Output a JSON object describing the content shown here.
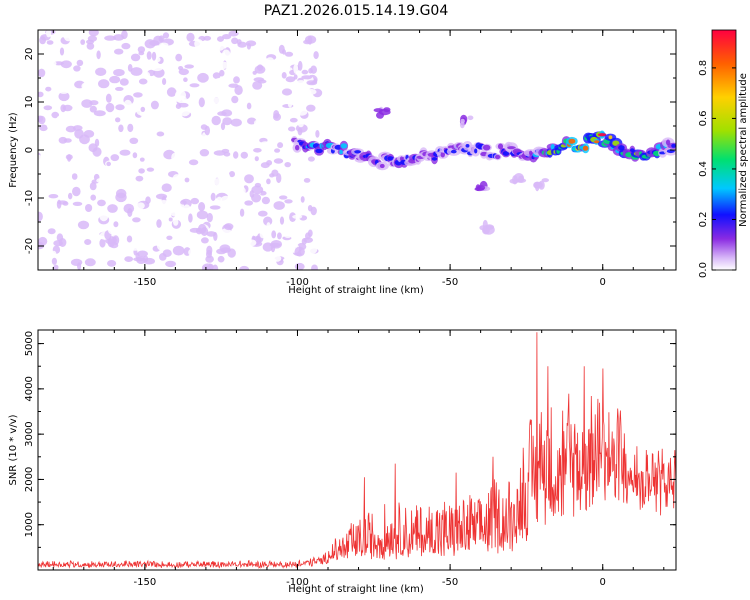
{
  "title": "PAZ1.2026.015.14.19.G04",
  "chart_data": [
    {
      "type": "heatmap",
      "name": "spectrogram",
      "xlabel": "Height of straight line (km)",
      "ylabel": "Frequency (Hz)",
      "xlim": [
        -185,
        24
      ],
      "ylim": [
        -25,
        25
      ],
      "xticks": [
        -150,
        -100,
        -50,
        0
      ],
      "yticks": [
        -20,
        -10,
        0,
        10,
        20
      ],
      "colorbar": {
        "label": "Normalized spectral amplitude",
        "range": [
          0.0,
          0.95
        ],
        "ticks": [
          0.0,
          0.2,
          0.4,
          0.6,
          0.8
        ],
        "colormap": [
          "#ffffff",
          "#d8b8f8",
          "#8a2be2",
          "#1010ff",
          "#00c8ff",
          "#00e070",
          "#a0e000",
          "#ffd000",
          "#ff6000",
          "#ff0040"
        ]
      },
      "noise_region": {
        "x_range": [
          -185,
          -93
        ],
        "y_range": [
          -25,
          25
        ],
        "amplitude_range": [
          0.0,
          0.15
        ]
      },
      "signal_track": [
        {
          "x": -100,
          "f": 1.0
        },
        {
          "x": -95,
          "f": 1.0
        },
        {
          "x": -90,
          "f": 0.5
        },
        {
          "x": -85,
          "f": 0.0
        },
        {
          "x": -80,
          "f": -1.0
        },
        {
          "x": -75,
          "f": -2.0
        },
        {
          "x": -70,
          "f": -2.5
        },
        {
          "x": -65,
          "f": -2.0
        },
        {
          "x": -60,
          "f": -1.5
        },
        {
          "x": -55,
          "f": -1.0
        },
        {
          "x": -50,
          "f": -0.5
        },
        {
          "x": -45,
          "f": 0.0
        },
        {
          "x": -40,
          "f": 0.0
        },
        {
          "x": -35,
          "f": -0.5
        },
        {
          "x": -30,
          "f": 0.5
        },
        {
          "x": -25,
          "f": -1.0
        },
        {
          "x": -20,
          "f": -0.5
        },
        {
          "x": -15,
          "f": 0.5
        },
        {
          "x": -10,
          "f": 1.0
        },
        {
          "x": -5,
          "f": 1.5
        },
        {
          "x": 0,
          "f": 2.5
        },
        {
          "x": 5,
          "f": 1.0
        },
        {
          "x": 8,
          "f": -1.0
        },
        {
          "x": 12,
          "f": -1.0
        },
        {
          "x": 16,
          "f": 0.0
        },
        {
          "x": 20,
          "f": 0.5
        },
        {
          "x": 24,
          "f": 1.0
        }
      ],
      "track_amplitude": [
        {
          "x": -100,
          "a": 0.3
        },
        {
          "x": -90,
          "a": 0.5
        },
        {
          "x": -80,
          "a": 0.3
        },
        {
          "x": -70,
          "a": 0.35
        },
        {
          "x": -60,
          "a": 0.3
        },
        {
          "x": -50,
          "a": 0.35
        },
        {
          "x": -40,
          "a": 0.3
        },
        {
          "x": -30,
          "a": 0.3
        },
        {
          "x": -20,
          "a": 0.45
        },
        {
          "x": -15,
          "a": 0.7
        },
        {
          "x": -10,
          "a": 0.85
        },
        {
          "x": -5,
          "a": 0.8
        },
        {
          "x": 0,
          "a": 0.9
        },
        {
          "x": 5,
          "a": 0.55
        },
        {
          "x": 10,
          "a": 0.55
        },
        {
          "x": 15,
          "a": 0.6
        },
        {
          "x": 20,
          "a": 0.45
        },
        {
          "x": 24,
          "a": 0.4
        }
      ],
      "side_features": [
        {
          "x": -72,
          "f": 8.0,
          "a": 0.2
        },
        {
          "x": -45,
          "f": 6.0,
          "a": 0.15
        },
        {
          "x": -40,
          "f": -7.5,
          "a": 0.2
        },
        {
          "x": -38,
          "f": -16.0,
          "a": 0.12
        },
        {
          "x": -28,
          "f": -6.0,
          "a": 0.12
        },
        {
          "x": -20,
          "f": -7.0,
          "a": 0.1
        }
      ]
    },
    {
      "type": "line",
      "name": "snr",
      "xlabel": "Height of straight line (km)",
      "ylabel": "SNR (10 * v/v)",
      "xlim": [
        -185,
        24
      ],
      "ylim": [
        0,
        5300
      ],
      "xticks": [
        -150,
        -100,
        -50,
        0
      ],
      "yticks": [
        1000,
        2000,
        3000,
        4000,
        5000
      ],
      "color": "#ee3333",
      "envelope": [
        {
          "x": -185,
          "base": 100,
          "spread": 120
        },
        {
          "x": -100,
          "base": 100,
          "spread": 120
        },
        {
          "x": -92,
          "base": 180,
          "spread": 200
        },
        {
          "x": -88,
          "base": 300,
          "spread": 400
        },
        {
          "x": -80,
          "base": 400,
          "spread": 800
        },
        {
          "x": -70,
          "base": 450,
          "spread": 1100
        },
        {
          "x": -60,
          "base": 450,
          "spread": 1100
        },
        {
          "x": -50,
          "base": 500,
          "spread": 1200
        },
        {
          "x": -40,
          "base": 600,
          "spread": 1300
        },
        {
          "x": -30,
          "base": 700,
          "spread": 1500
        },
        {
          "x": -25,
          "base": 1200,
          "spread": 2000
        },
        {
          "x": -21,
          "base": 1800,
          "spread": 2500
        },
        {
          "x": -15,
          "base": 2000,
          "spread": 2200
        },
        {
          "x": -5,
          "base": 2500,
          "spread": 1700
        },
        {
          "x": 5,
          "base": 2800,
          "spread": 1000
        },
        {
          "x": 12,
          "base": 2200,
          "spread": 800
        },
        {
          "x": 24,
          "base": 2400,
          "spread": 600
        }
      ],
      "peaks": [
        {
          "x": -21.5,
          "y": 5250
        },
        {
          "x": -18,
          "y": 4500
        },
        {
          "x": -6,
          "y": 4500
        },
        {
          "x": 0,
          "y": 4450
        },
        {
          "x": -78,
          "y": 2050
        },
        {
          "x": -68,
          "y": 2350
        },
        {
          "x": -48,
          "y": 2150
        },
        {
          "x": -36,
          "y": 2500
        },
        {
          "x": -26,
          "y": 2700
        }
      ]
    }
  ]
}
